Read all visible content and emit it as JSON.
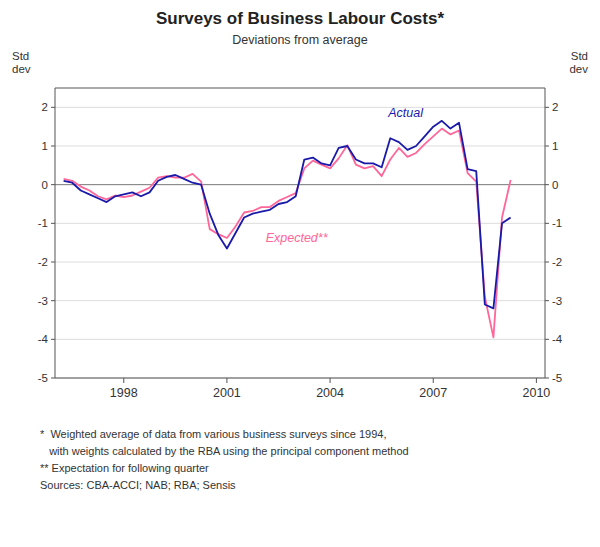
{
  "chart_data": {
    "type": "line",
    "title": "Surveys of Business Labour Costs*",
    "subtitle": "Deviations from average",
    "y_label": "Std\ndev",
    "y2_label": "Std\ndev",
    "footnotes": [
      "*  Weighted average of data from various business surveys since 1994,",
      "   with weights calculated by the RBA using the principal component method",
      "** Expectation for following quarter",
      "Sources: CBA-ACCI; NAB; RBA; Sensis"
    ],
    "grid": true,
    "xlim": [
      1996.0,
      2010.25
    ],
    "xticks": [
      1998,
      2001,
      2004,
      2007,
      2010
    ],
    "ylim": [
      -5,
      2.5
    ],
    "yticks": [
      -5,
      -4,
      -3,
      -2,
      -1,
      0,
      1,
      2
    ],
    "y2lim": [
      -5,
      2.5
    ],
    "y2ticks": [
      -5,
      -4,
      -3,
      -2,
      -1,
      0,
      1,
      2
    ],
    "x": [
      1996.25,
      1996.5,
      1996.75,
      1997.0,
      1997.25,
      1997.5,
      1997.75,
      1998.0,
      1998.25,
      1998.5,
      1998.75,
      1999.0,
      1999.25,
      1999.5,
      1999.75,
      2000.0,
      2000.25,
      2000.5,
      2000.75,
      2001.0,
      2001.25,
      2001.5,
      2001.75,
      2002.0,
      2002.25,
      2002.5,
      2002.75,
      2003.0,
      2003.25,
      2003.5,
      2003.75,
      2004.0,
      2004.25,
      2004.5,
      2004.75,
      2005.0,
      2005.25,
      2005.5,
      2005.75,
      2006.0,
      2006.25,
      2006.5,
      2006.75,
      2007.0,
      2007.25,
      2007.5,
      2007.75,
      2008.0,
      2008.25,
      2008.5,
      2008.75,
      2009.0,
      2009.25
    ],
    "series": [
      {
        "name": "Actual",
        "color": "#1a1aaa",
        "values": [
          0.1,
          0.05,
          -0.15,
          -0.25,
          -0.35,
          -0.45,
          -0.3,
          -0.25,
          -0.2,
          -0.3,
          -0.2,
          0.1,
          0.2,
          0.25,
          0.15,
          0.05,
          0.0,
          -0.75,
          -1.3,
          -1.65,
          -1.25,
          -0.85,
          -0.75,
          -0.7,
          -0.65,
          -0.5,
          -0.45,
          -0.3,
          0.65,
          0.7,
          0.55,
          0.5,
          0.95,
          1.0,
          0.65,
          0.55,
          0.55,
          0.45,
          1.2,
          1.1,
          0.9,
          1.0,
          1.25,
          1.5,
          1.65,
          1.45,
          1.6,
          0.4,
          0.35,
          -3.1,
          -3.2,
          -1.0,
          -0.85
        ]
      },
      {
        "name": "Expected**",
        "color": "#FF6699",
        "values": [
          0.15,
          0.1,
          -0.05,
          -0.15,
          -0.3,
          -0.38,
          -0.28,
          -0.32,
          -0.28,
          -0.18,
          -0.08,
          0.18,
          0.22,
          0.18,
          0.18,
          0.28,
          0.08,
          -1.15,
          -1.28,
          -1.38,
          -1.08,
          -0.72,
          -0.68,
          -0.58,
          -0.58,
          -0.42,
          -0.32,
          -0.22,
          0.42,
          0.62,
          0.52,
          0.42,
          0.68,
          1.02,
          0.52,
          0.42,
          0.48,
          0.22,
          0.65,
          0.95,
          0.72,
          0.82,
          1.05,
          1.25,
          1.45,
          1.3,
          1.4,
          0.3,
          0.08,
          -2.9,
          -3.95,
          -0.85,
          0.12
        ]
      }
    ]
  }
}
